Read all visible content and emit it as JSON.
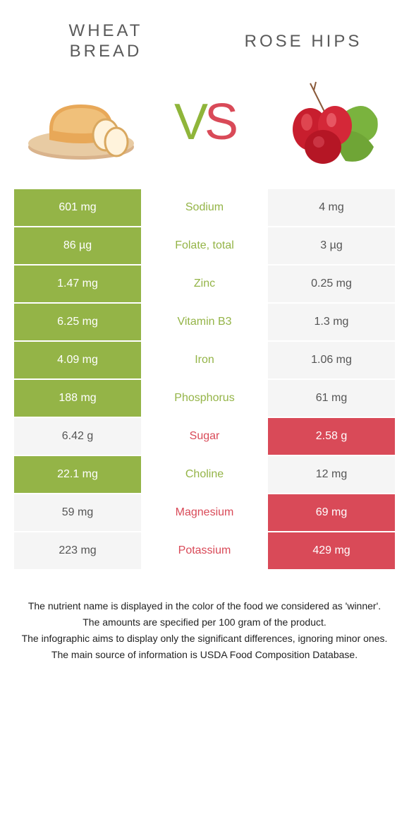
{
  "left_food": {
    "title_line1": "Wheat",
    "title_line2": "Bread",
    "color": "#94b447",
    "text_color": "#ffffff"
  },
  "right_food": {
    "title": "Rose hips",
    "color": "#d94a58",
    "text_color": "#ffffff"
  },
  "vs": {
    "v": "V",
    "s": "S"
  },
  "winner_colors": {
    "left": "#94b447",
    "right": "#d94a58"
  },
  "non_winner_bg": "#f5f5f5",
  "non_winner_text": "#555555",
  "rows": [
    {
      "label": "Sodium",
      "left": "601 mg",
      "right": "4 mg",
      "winner": "left"
    },
    {
      "label": "Folate, total",
      "left": "86 µg",
      "right": "3 µg",
      "winner": "left"
    },
    {
      "label": "Zinc",
      "left": "1.47 mg",
      "right": "0.25 mg",
      "winner": "left"
    },
    {
      "label": "Vitamin B3",
      "left": "6.25 mg",
      "right": "1.3 mg",
      "winner": "left"
    },
    {
      "label": "Iron",
      "left": "4.09 mg",
      "right": "1.06 mg",
      "winner": "left"
    },
    {
      "label": "Phosphorus",
      "left": "188 mg",
      "right": "61 mg",
      "winner": "left"
    },
    {
      "label": "Sugar",
      "left": "6.42 g",
      "right": "2.58 g",
      "winner": "right"
    },
    {
      "label": "Choline",
      "left": "22.1 mg",
      "right": "12 mg",
      "winner": "left"
    },
    {
      "label": "Magnesium",
      "left": "59 mg",
      "right": "69 mg",
      "winner": "right"
    },
    {
      "label": "Potassium",
      "left": "223 mg",
      "right": "429 mg",
      "winner": "right"
    }
  ],
  "footnotes": [
    "The nutrient name is displayed in the color of the food we considered as 'winner'.",
    "The amounts are specified per 100 gram of the product.",
    "The infographic aims to display only the significant differences, ignoring minor ones.",
    "The main source of information is USDA Food Composition Database."
  ]
}
